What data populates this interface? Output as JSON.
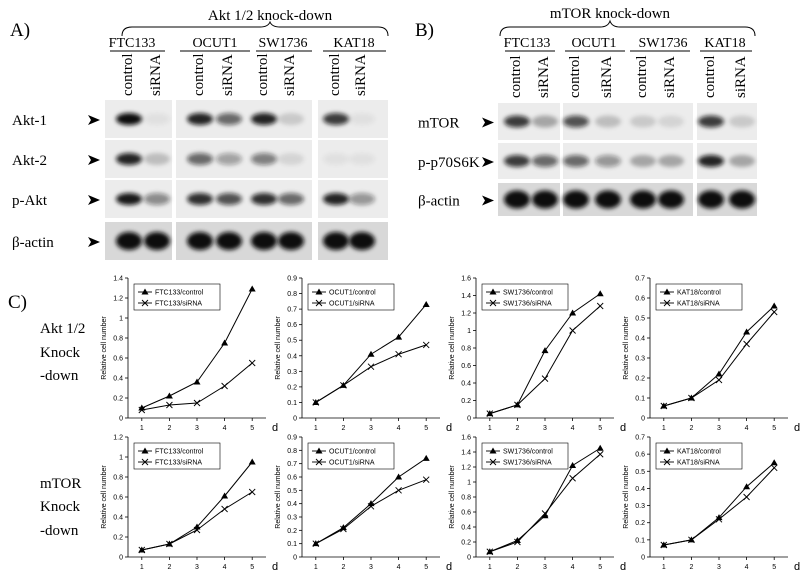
{
  "panel_a": {
    "label": "A)",
    "title": "Akt 1/2 knock-down",
    "cell_lines": [
      "FTC133",
      "OCUT1",
      "SW1736",
      "KAT18"
    ],
    "lanes": [
      "control",
      "siRNA"
    ],
    "rows": [
      "Akt-1",
      "Akt-2",
      "p-Akt",
      "β-actin"
    ]
  },
  "panel_b": {
    "label": "B)",
    "title": "mTOR knock-down",
    "cell_lines": [
      "FTC133",
      "OCUT1",
      "SW1736",
      "KAT18"
    ],
    "lanes": [
      "control",
      "siRNA"
    ],
    "rows": [
      "mTOR",
      "p-p70S6K",
      "β-actin"
    ]
  },
  "panel_c": {
    "label": "C)",
    "rows": [
      [
        "Akt 1/2",
        "Knock",
        "-down"
      ],
      [
        "mTOR",
        "Knock",
        "-down"
      ]
    ]
  },
  "chart_data": [
    {
      "type": "line",
      "ylabel": "Relative cell number",
      "xlabel": "d",
      "x": [
        1,
        2,
        3,
        4,
        5
      ],
      "xlim": [
        0.5,
        5.5
      ],
      "xticks": [
        1,
        2,
        3,
        4,
        5
      ],
      "ylim": [
        0,
        1.4
      ],
      "yticks": [
        0,
        0.2,
        0.4,
        0.6,
        0.8,
        1,
        1.2,
        1.4
      ],
      "series": [
        {
          "name": "FTC133/control",
          "color": "#000000",
          "marker": "triangle",
          "values": [
            0.1,
            0.22,
            0.36,
            0.75,
            1.29
          ]
        },
        {
          "name": "FTC133/siRNA",
          "color": "#000000",
          "marker": "x",
          "values": [
            0.08,
            0.13,
            0.15,
            0.32,
            0.55
          ]
        }
      ]
    },
    {
      "type": "line",
      "ylabel": "Relative cell number",
      "xlabel": "d",
      "x": [
        1,
        2,
        3,
        4,
        5
      ],
      "xlim": [
        0.5,
        5.5
      ],
      "xticks": [
        1,
        2,
        3,
        4,
        5
      ],
      "ylim": [
        0,
        0.9
      ],
      "yticks": [
        0,
        0.1,
        0.2,
        0.3,
        0.4,
        0.5,
        0.6,
        0.7,
        0.8,
        0.9
      ],
      "series": [
        {
          "name": "OCUT1/control",
          "color": "#000000",
          "marker": "triangle",
          "values": [
            0.1,
            0.21,
            0.41,
            0.52,
            0.73
          ]
        },
        {
          "name": "OCUT1/siRNA",
          "color": "#000000",
          "marker": "x",
          "values": [
            0.1,
            0.21,
            0.33,
            0.41,
            0.47
          ]
        }
      ]
    },
    {
      "type": "line",
      "ylabel": "Relative cell number",
      "xlabel": "d",
      "x": [
        1,
        2,
        3,
        4,
        5
      ],
      "xlim": [
        0.5,
        5.5
      ],
      "xticks": [
        1,
        2,
        3,
        4,
        5
      ],
      "ylim": [
        0,
        1.6
      ],
      "yticks": [
        0,
        0.2,
        0.4,
        0.6,
        0.8,
        1,
        1.2,
        1.4,
        1.6
      ],
      "series": [
        {
          "name": "SW1736/control",
          "color": "#000000",
          "marker": "triangle",
          "values": [
            0.05,
            0.15,
            0.77,
            1.2,
            1.42
          ]
        },
        {
          "name": "SW1736/siRNA",
          "color": "#000000",
          "marker": "x",
          "values": [
            0.05,
            0.15,
            0.45,
            1.0,
            1.28
          ]
        }
      ]
    },
    {
      "type": "line",
      "ylabel": "Relative cell number",
      "xlabel": "d",
      "x": [
        1,
        2,
        3,
        4,
        5
      ],
      "xlim": [
        0.5,
        5.5
      ],
      "xticks": [
        1,
        2,
        3,
        4,
        5
      ],
      "ylim": [
        0,
        0.7
      ],
      "yticks": [
        0,
        0.1,
        0.2,
        0.3,
        0.4,
        0.5,
        0.6,
        0.7
      ],
      "series": [
        {
          "name": "KAT18/control",
          "color": "#000000",
          "marker": "triangle",
          "values": [
            0.06,
            0.1,
            0.22,
            0.43,
            0.56
          ]
        },
        {
          "name": "KAT18/siRNA",
          "color": "#000000",
          "marker": "x",
          "values": [
            0.06,
            0.1,
            0.19,
            0.37,
            0.53
          ]
        }
      ]
    },
    {
      "type": "line",
      "ylabel": "Relative cell number",
      "xlabel": "d",
      "x": [
        1,
        2,
        3,
        4,
        5
      ],
      "xlim": [
        0.5,
        5.5
      ],
      "xticks": [
        1,
        2,
        3,
        4,
        5
      ],
      "ylim": [
        0,
        1.2
      ],
      "yticks": [
        0,
        0.2,
        0.4,
        0.6,
        0.8,
        1,
        1.2
      ],
      "series": [
        {
          "name": "FTC133/control",
          "color": "#000000",
          "marker": "triangle",
          "values": [
            0.07,
            0.13,
            0.3,
            0.61,
            0.95
          ]
        },
        {
          "name": "FTC133/siRNA",
          "color": "#000000",
          "marker": "x",
          "values": [
            0.07,
            0.13,
            0.27,
            0.48,
            0.65
          ]
        }
      ]
    },
    {
      "type": "line",
      "ylabel": "Relative cell number",
      "xlabel": "d",
      "x": [
        1,
        2,
        3,
        4,
        5
      ],
      "xlim": [
        0.5,
        5.5
      ],
      "xticks": [
        1,
        2,
        3,
        4,
        5
      ],
      "ylim": [
        0,
        0.9
      ],
      "yticks": [
        0,
        0.1,
        0.2,
        0.3,
        0.4,
        0.5,
        0.6,
        0.7,
        0.8,
        0.9
      ],
      "series": [
        {
          "name": "OCUT1/control",
          "color": "#000000",
          "marker": "triangle",
          "values": [
            0.1,
            0.22,
            0.4,
            0.6,
            0.74
          ]
        },
        {
          "name": "OCUT1/siRNA",
          "color": "#000000",
          "marker": "x",
          "values": [
            0.1,
            0.21,
            0.38,
            0.5,
            0.58
          ]
        }
      ]
    },
    {
      "type": "line",
      "ylabel": "Relative cell number",
      "xlabel": "d",
      "x": [
        1,
        2,
        3,
        4,
        5
      ],
      "xlim": [
        0.5,
        5.5
      ],
      "xticks": [
        1,
        2,
        3,
        4,
        5
      ],
      "ylim": [
        0,
        1.6
      ],
      "yticks": [
        0,
        0.2,
        0.4,
        0.6,
        0.8,
        1,
        1.2,
        1.4,
        1.6
      ],
      "series": [
        {
          "name": "SW1736/control",
          "color": "#000000",
          "marker": "triangle",
          "values": [
            0.07,
            0.22,
            0.55,
            1.22,
            1.45
          ]
        },
        {
          "name": "SW1736/siRNA",
          "color": "#000000",
          "marker": "x",
          "values": [
            0.07,
            0.2,
            0.58,
            1.05,
            1.37
          ]
        }
      ]
    },
    {
      "type": "line",
      "ylabel": "Relative cell number",
      "xlabel": "d",
      "x": [
        1,
        2,
        3,
        4,
        5
      ],
      "xlim": [
        0.5,
        5.5
      ],
      "xticks": [
        1,
        2,
        3,
        4,
        5
      ],
      "ylim": [
        0,
        0.7
      ],
      "yticks": [
        0,
        0.1,
        0.2,
        0.3,
        0.4,
        0.5,
        0.6,
        0.7
      ],
      "series": [
        {
          "name": "KAT18/control",
          "color": "#000000",
          "marker": "triangle",
          "values": [
            0.07,
            0.1,
            0.23,
            0.41,
            0.55
          ]
        },
        {
          "name": "KAT18/siRNA",
          "color": "#000000",
          "marker": "x",
          "values": [
            0.07,
            0.1,
            0.22,
            0.35,
            0.52
          ]
        }
      ]
    }
  ]
}
